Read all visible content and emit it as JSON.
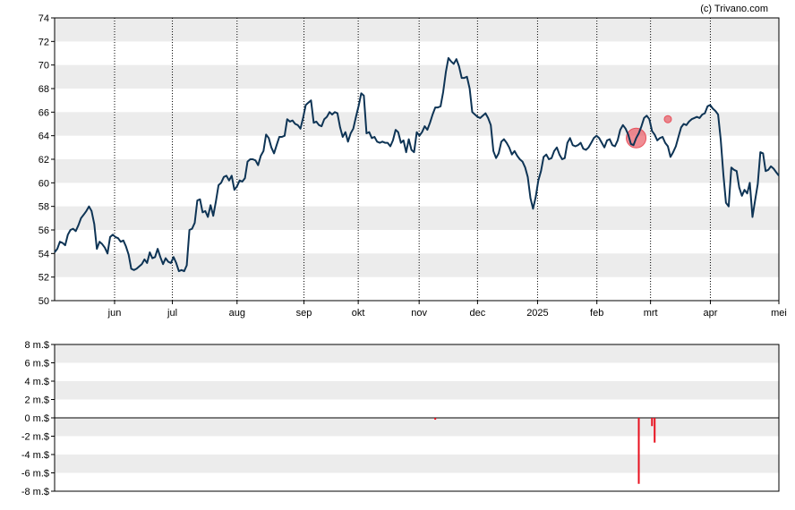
{
  "credit": "(c) Trivano.com",
  "chart_data": [
    {
      "type": "line",
      "title": "",
      "ylim": [
        50,
        74
      ],
      "y_ticks": [
        50,
        52,
        54,
        56,
        58,
        60,
        62,
        64,
        66,
        68,
        70,
        72,
        74
      ],
      "x_ticks": [
        "jun",
        "jul",
        "aug",
        "sep",
        "okt",
        "nov",
        "dec",
        "2025",
        "feb",
        "mrt",
        "apr",
        "mei"
      ],
      "grid": true,
      "line_color": "#0e3455",
      "series": [
        {
          "values": [
            54.1,
            54.4,
            55,
            54.9,
            54.7,
            55.6,
            56,
            56.1,
            55.9,
            56.4,
            57,
            57.3,
            57.6,
            58,
            57.6,
            56.5,
            54.4,
            55,
            54.8,
            54.5,
            54,
            55.4,
            55.6,
            55.4,
            55.3,
            55,
            55.1,
            54.6,
            53.9,
            52.7,
            52.6,
            52.7,
            52.9,
            53.1,
            53.5,
            53.2,
            54.1,
            53.6,
            53.7,
            54.4,
            53.7,
            53.1,
            53.6,
            53.3,
            53.2,
            53.7,
            53.2,
            52.5,
            52.6,
            52.5,
            53,
            56,
            56.1,
            56.6,
            58.5,
            58.6,
            57.5,
            57.6,
            57.1,
            58.1,
            57.2,
            58.4,
            59.8,
            60,
            60.5,
            60.6,
            60.2,
            60.6,
            59.4,
            59.7,
            60.2,
            60.1,
            60.4,
            61.8,
            62,
            62,
            61.9,
            61.5,
            62.3,
            62.7,
            64.1,
            63.8,
            63,
            62.5,
            63.2,
            63.9,
            63.9,
            64,
            65.4,
            65.2,
            65.3,
            65,
            64.9,
            64.6,
            65.5,
            66.6,
            66.8,
            67,
            65.1,
            65.2,
            64.9,
            64.8,
            65.4,
            65.6,
            66,
            65.8,
            66,
            65.9,
            64.7,
            63.9,
            64.3,
            63.5,
            64.2,
            64.6,
            65.6,
            66.5,
            67.6,
            67.4,
            64.2,
            64.3,
            63.8,
            63.9,
            63.5,
            63.4,
            63.5,
            63.4,
            63.4,
            63.1,
            63.6,
            64.5,
            64.3,
            63.4,
            63.6,
            62.6,
            63.7,
            62.8,
            62.6,
            64.3,
            64,
            64.3,
            64.8,
            64.5,
            65.1,
            65.8,
            66.4,
            66.4,
            66.5,
            67.7,
            69.4,
            70.6,
            70.3,
            70.1,
            70.5,
            69.9,
            68.9,
            68.9,
            69,
            68,
            66,
            65.8,
            65.6,
            65.5,
            65.7,
            65.9,
            65.5,
            64.9,
            62.7,
            62.1,
            62.5,
            63.5,
            63.7,
            63.4,
            63,
            62.4,
            62.7,
            62.3,
            62,
            61.8,
            61.3,
            60.5,
            58.7,
            57.8,
            58.8,
            60.2,
            61,
            62.2,
            62.4,
            62,
            62.1,
            62.7,
            63,
            62.4,
            62,
            62.1,
            63.4,
            63.8,
            63.2,
            63.1,
            63.2,
            63.4,
            62.9,
            62.8,
            63,
            63.4,
            63.8,
            64,
            63.8,
            63.4,
            63,
            63.6,
            63.7,
            63.2,
            63.1,
            63.6,
            64.5,
            64.9,
            64.6,
            64.1,
            63.3,
            63.2,
            63.8,
            64.2,
            64.8,
            65.5,
            65.7,
            65.4,
            64.4,
            64.1,
            63.6,
            63.8,
            63.9,
            63.4,
            63.1,
            62.2,
            62.6,
            63.1,
            63.9,
            64.7,
            65,
            64.9,
            65.2,
            65.4,
            65.5,
            65.6,
            65.5,
            65.8,
            65.9,
            66.5,
            66.6,
            66.3,
            66.1,
            65.8,
            63.7,
            60.7,
            58.3,
            58,
            61.3,
            61.1,
            61,
            59.6,
            58.9,
            59.4,
            59.1,
            60,
            57.1,
            58.5,
            59.9,
            62.6,
            62.5,
            61,
            61.1,
            61.4,
            61.2,
            60.9,
            60.6
          ]
        }
      ],
      "markers": [
        {
          "x_index": 220,
          "y": 63.8,
          "size": "large",
          "color": "#e8505b"
        },
        {
          "x_index": 232,
          "y": 65.4,
          "size": "small",
          "color": "#e8505b"
        }
      ]
    },
    {
      "type": "bar",
      "title": "",
      "ylim": [
        -8,
        8
      ],
      "y_ticks": [
        8,
        6,
        4,
        2,
        0,
        -2,
        -4,
        -6,
        -8
      ],
      "y_tick_labels": [
        "8 m.$",
        "6 m.$",
        "4 m.$",
        "2 m.$",
        "0 m.$",
        "-2 m.$",
        "-4 m.$",
        "-6 m.$",
        "-8 m.$"
      ],
      "grid": true,
      "bar_color": "#e8101e",
      "series": [
        {
          "points": [
            {
              "x_index": 144,
              "value": -0.2
            },
            {
              "x_index": 221,
              "value": -7.2
            },
            {
              "x_index": 226,
              "value": -0.9
            },
            {
              "x_index": 227,
              "value": -2.7
            }
          ]
        }
      ]
    }
  ]
}
